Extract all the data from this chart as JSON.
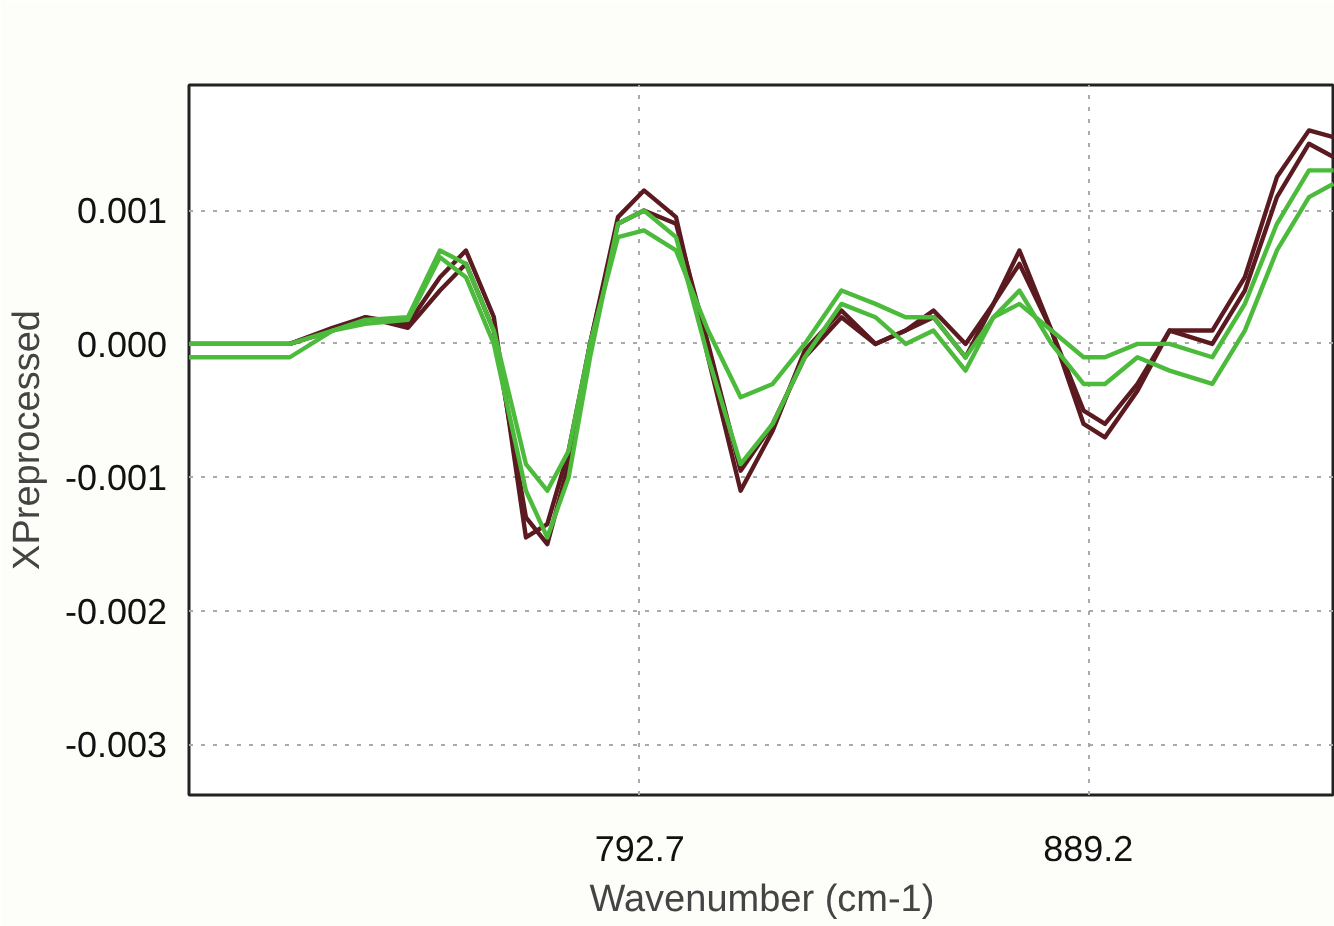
{
  "chart_data": {
    "type": "line",
    "xlabel": "Wavenumber (cm-1)",
    "ylabel": "XPreprocessed",
    "x": [
      695.7,
      717.4,
      726.6,
      733.6,
      742.8,
      749.7,
      755.3,
      761.3,
      768.2,
      772.8,
      777.4,
      782.0,
      788.0,
      793.6,
      800.5,
      807.4,
      814.4,
      821.3,
      828.2,
      836.1,
      843.4,
      849.9,
      855.9,
      862.8,
      868.8,
      874.4,
      881.3,
      888.2,
      892.8,
      899.8,
      906.7,
      915.9,
      922.9,
      929.8,
      936.7,
      942.0
    ],
    "series": [
      {
        "color": "#5a1a20",
        "values": [
          0.0,
          0.0,
          0.0001,
          0.0002,
          0.00015,
          0.0005,
          0.0007,
          0.0002,
          -0.00145,
          -0.00135,
          -0.0008,
          0.0,
          0.00095,
          0.00115,
          0.00095,
          -0.0001,
          -0.0011,
          -0.00065,
          -5e-05,
          0.00025,
          0.0,
          0.0001,
          0.00025,
          0.0,
          0.0003,
          0.0007,
          0.0001,
          -0.0006,
          -0.0007,
          -0.00035,
          0.0001,
          0.0001,
          0.0005,
          0.00125,
          0.0016,
          0.00155
        ]
      },
      {
        "color": "#5a1a20",
        "values": [
          0.0,
          0.0,
          0.00012,
          0.0002,
          0.00012,
          0.0004,
          0.0006,
          0.0001,
          -0.0013,
          -0.0015,
          -0.0009,
          0.0,
          0.0009,
          0.001,
          0.0009,
          0.0,
          -0.00095,
          -0.0006,
          -0.0001,
          0.0002,
          0.0,
          0.0001,
          0.0002,
          -0.0001,
          0.0003,
          0.0006,
          0.0001,
          -0.0005,
          -0.0006,
          -0.0003,
          0.0001,
          0.0,
          0.0004,
          0.0011,
          0.0015,
          0.0014
        ]
      },
      {
        "color": "#4cbb3c",
        "values": [
          0.0,
          0.0,
          0.0001,
          0.00018,
          0.0002,
          0.0007,
          0.0006,
          0.0001,
          -0.0009,
          -0.0011,
          -0.0008,
          0.0,
          0.0008,
          0.00085,
          0.0007,
          0.0001,
          -0.0004,
          -0.0003,
          0.0,
          0.0004,
          0.0003,
          0.0002,
          0.0002,
          -0.0001,
          0.0002,
          0.0003,
          0.0001,
          -0.0001,
          -0.0001,
          0.0,
          0.0,
          -0.0001,
          0.0003,
          0.0009,
          0.0013,
          0.0013
        ]
      },
      {
        "color": "#4cbb3c",
        "values": [
          -0.0001,
          -0.0001,
          0.0001,
          0.00015,
          0.00018,
          0.00065,
          0.0005,
          0.0,
          -0.0011,
          -0.00145,
          -0.001,
          -0.0001,
          0.0009,
          0.001,
          0.0008,
          -0.0001,
          -0.0009,
          -0.0006,
          -0.0001,
          0.0003,
          0.0002,
          0.0,
          0.0001,
          -0.0002,
          0.0002,
          0.0004,
          0.0,
          -0.0003,
          -0.0003,
          -0.0001,
          -0.0002,
          -0.0003,
          0.0001,
          0.0007,
          0.0011,
          0.0012
        ]
      }
    ],
    "xlim": [
      695.7,
      942.3
    ],
    "ylim": [
      -0.00338,
      0.00194
    ],
    "xticks": [
      792.7,
      889.2
    ],
    "yticks": [
      0.001,
      {
        "value": 0,
        "label": "0.000"
      },
      -0.001,
      -0.002,
      -0.003
    ],
    "grid": true,
    "line_style": "solid"
  }
}
